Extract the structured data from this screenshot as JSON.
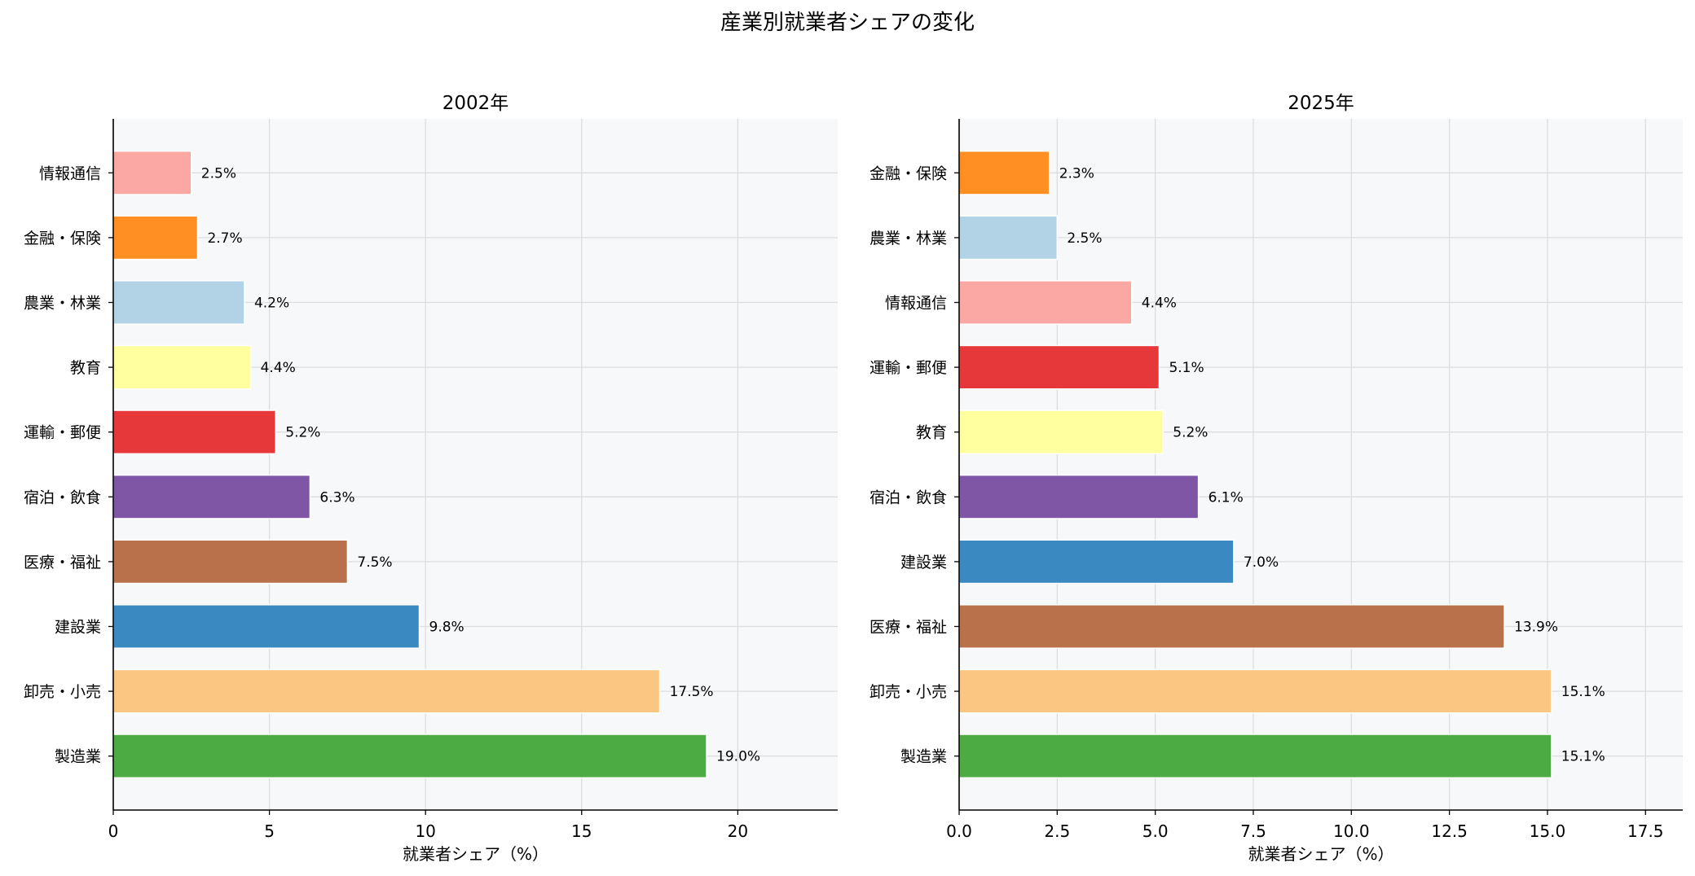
{
  "title": "産業別就業者シェアの変化",
  "chart_data": [
    {
      "type": "bar",
      "orientation": "horizontal",
      "title": "2002年",
      "xlabel": "就業者シェア（%）",
      "ylabel": "",
      "xlim": [
        0,
        23.2
      ],
      "xticks": [
        "0",
        "5",
        "10",
        "15",
        "20"
      ],
      "xtick_values": [
        0,
        5,
        10,
        15,
        20
      ],
      "grid": true,
      "value_suffix": "%",
      "categories": [
        "製造業",
        "卸売・小売",
        "建設業",
        "医療・福祉",
        "宿泊・飲食",
        "運輸・郵便",
        "教育",
        "農業・林業",
        "金融・保険",
        "情報通信"
      ],
      "values": [
        19.0,
        17.5,
        9.8,
        7.5,
        6.3,
        5.2,
        4.4,
        4.2,
        2.7,
        2.5
      ],
      "labels": [
        "19.0%",
        "17.5%",
        "9.8%",
        "7.5%",
        "6.3%",
        "5.2%",
        "4.4%",
        "4.2%",
        "2.7%",
        "2.5%"
      ],
      "colors": [
        "#4dab44",
        "#fbc681",
        "#3a89c0",
        "#b8714a",
        "#7f56a5",
        "#e6383a",
        "#ffffa0",
        "#b2d3e6",
        "#ff8f23",
        "#fba8a5"
      ]
    },
    {
      "type": "bar",
      "orientation": "horizontal",
      "title": "2025年",
      "xlabel": "就業者シェア（%）",
      "ylabel": "",
      "xlim": [
        0,
        18.45
      ],
      "xticks": [
        "0.0",
        "2.5",
        "5.0",
        "7.5",
        "10.0",
        "12.5",
        "15.0",
        "17.5"
      ],
      "xtick_values": [
        0,
        2.5,
        5,
        7.5,
        10,
        12.5,
        15,
        17.5
      ],
      "grid": true,
      "value_suffix": "%",
      "categories": [
        "製造業",
        "卸売・小売",
        "医療・福祉",
        "建設業",
        "宿泊・飲食",
        "教育",
        "運輸・郵便",
        "情報通信",
        "農業・林業",
        "金融・保険"
      ],
      "values": [
        15.1,
        15.1,
        13.9,
        7.0,
        6.1,
        5.2,
        5.1,
        4.4,
        2.5,
        2.3
      ],
      "labels": [
        "15.1%",
        "15.1%",
        "13.9%",
        "7.0%",
        "6.1%",
        "5.2%",
        "5.1%",
        "4.4%",
        "2.5%",
        "2.3%"
      ],
      "colors": [
        "#4dab44",
        "#fbc681",
        "#b8714a",
        "#3a89c0",
        "#7f56a5",
        "#ffffa0",
        "#e6383a",
        "#fba8a5",
        "#b2d3e6",
        "#ff8f23"
      ]
    }
  ]
}
